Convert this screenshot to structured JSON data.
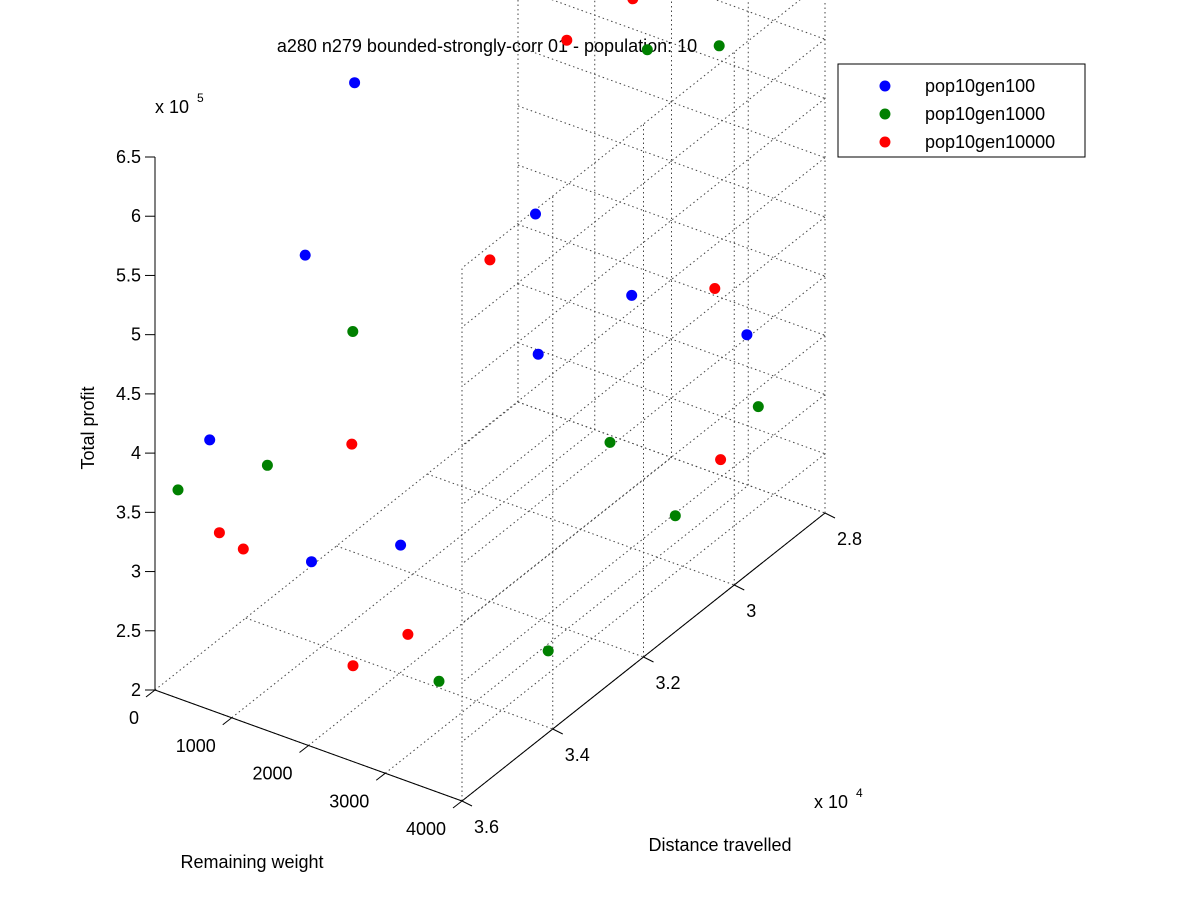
{
  "chart_data": {
    "type": "scatter",
    "title": "a280 n279 bounded-strongly-corr 01 - population: 10",
    "xlabel": "Remaining weight",
    "ylabel": "Distance travelled",
    "zlabel": "Total profit",
    "xlim": [
      0,
      4000
    ],
    "ylim": [
      28000,
      36000
    ],
    "zlim": [
      200000,
      650000
    ],
    "x_ticks": [
      "0",
      "1000",
      "2000",
      "3000",
      "4000"
    ],
    "y_ticks": [
      "2.8",
      "3",
      "3.2",
      "3.4",
      "3.6"
    ],
    "z_ticks": [
      "2",
      "2.5",
      "3",
      "3.5",
      "4",
      "4.5",
      "5",
      "5.5",
      "6",
      "6.5"
    ],
    "y_multiplier": {
      "base": "x 10",
      "exp": "4"
    },
    "z_multiplier": {
      "base": "x 10",
      "exp": "5"
    },
    "grid": true,
    "legend_position": "top-right",
    "series": [
      {
        "name": "pop10gen100",
        "color": "#0000ff",
        "points": [
          [
            920,
            29400,
            614000
          ],
          [
            0,
            31600,
            579000
          ],
          [
            420,
            33400,
            498000
          ],
          [
            1470,
            30100,
            457000
          ],
          [
            2220,
            29250,
            380000
          ],
          [
            1860,
            30700,
            366000
          ],
          [
            3160,
            28300,
            340000
          ],
          [
            180,
            35100,
            388000
          ],
          [
            1330,
            34800,
            303000
          ],
          [
            1900,
            33800,
            300000
          ]
        ]
      },
      {
        "name": "pop10gen1000",
        "color": "#008000",
        "points": [
          [
            1980,
            28500,
            559000
          ],
          [
            2740,
            28200,
            571000
          ],
          [
            1040,
            33400,
            448000
          ],
          [
            1050,
            35300,
            393000
          ],
          [
            3150,
            31300,
            340000
          ],
          [
            3900,
            29300,
            327000
          ],
          [
            300,
            36000,
            376000
          ],
          [
            4000,
            31300,
            298000
          ],
          [
            3700,
            36000,
            294000
          ],
          [
            4000,
            34100,
            269000
          ]
        ]
      },
      {
        "name": "pop10gen10000",
        "color": "#ff0000",
        "points": [
          [
            1850,
            28600,
            602000
          ],
          [
            1700,
            29800,
            600000
          ],
          [
            1940,
            31900,
            484000
          ],
          [
            2860,
            28500,
            378000
          ],
          [
            1500,
            34200,
            388000
          ],
          [
            1150,
            36000,
            346000
          ],
          [
            780,
            35900,
            348000
          ],
          [
            3000,
            35500,
            302000
          ],
          [
            4000,
            30300,
            315000
          ],
          [
            2580,
            36000,
            281000
          ]
        ]
      }
    ]
  }
}
